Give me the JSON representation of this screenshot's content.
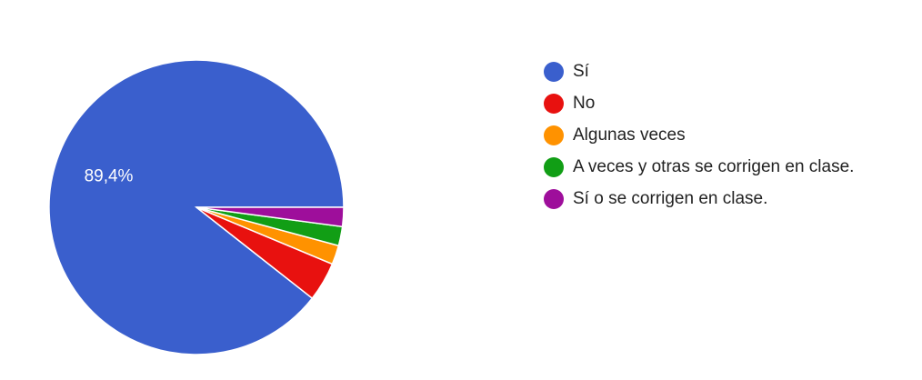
{
  "chart_data": {
    "type": "pie",
    "title": "",
    "categories": [
      "Sí",
      "No",
      "Algunas veces",
      "A veces y otras se corrigen en clase.",
      "Sí o se corrigen en clase."
    ],
    "values": [
      89.4,
      4.3,
      2.1,
      2.1,
      2.1
    ],
    "colors": [
      "#3a5fcd",
      "#e8110f",
      "#ff9200",
      "#119e15",
      "#9e0e9b"
    ],
    "data_labels": [
      "89,4%",
      "",
      "",
      "",
      ""
    ],
    "legend": {
      "placement": "right",
      "items": [
        {
          "label": "Sí",
          "color": "#3a5fcd"
        },
        {
          "label": "No",
          "color": "#e8110f"
        },
        {
          "label": "Algunas veces",
          "color": "#ff9200"
        },
        {
          "label": "A veces y otras se corrigen en clase.",
          "color": "#119e15"
        },
        {
          "label": "Sí o se corrigen en clase.",
          "color": "#9e0e9b"
        }
      ]
    }
  }
}
